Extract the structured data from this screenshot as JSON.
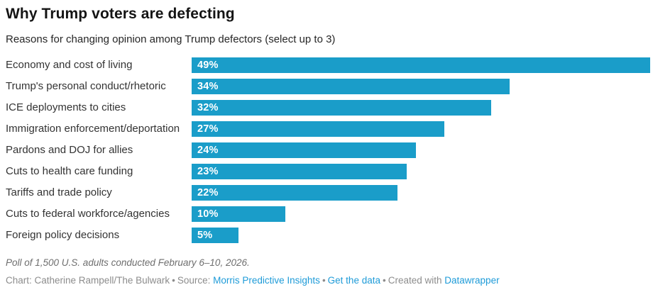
{
  "header": {
    "title": "Why Trump voters are defecting",
    "subtitle": "Reasons for changing opinion among Trump defectors (select up to 3)"
  },
  "chart_data": {
    "type": "bar",
    "orientation": "horizontal",
    "title": "Why Trump voters are defecting",
    "subtitle": "Reasons for changing opinion among Trump defectors (select up to 3)",
    "categories": [
      "Economy and cost of living",
      "Trump's personal conduct/rhetoric",
      "ICE deployments to cities",
      "Immigration enforcement/deportation",
      "Pardons and DOJ for allies",
      "Cuts to health care funding",
      "Tariffs and trade policy",
      "Cuts to federal workforce/agencies",
      "Foreign policy decisions"
    ],
    "values": [
      49,
      34,
      32,
      27,
      24,
      23,
      22,
      10,
      5
    ],
    "value_labels": [
      "49%",
      "34%",
      "32%",
      "27%",
      "24%",
      "23%",
      "22%",
      "10%",
      "5%"
    ],
    "value_suffix": "%",
    "xlim": [
      0,
      49
    ],
    "grid": false,
    "legend": "none",
    "bar_color": "#1a9dc9",
    "value_label_color": "#ffffff"
  },
  "footer": {
    "note": "Poll of 1,500 U.S. adults conducted February 6–10, 2026.",
    "byline": {
      "chart_credit": "Chart: Catherine Rampell/The Bulwark",
      "separator": "•",
      "source_label": "Source:",
      "source_name": "Morris Predictive Insights",
      "get_data": "Get the data",
      "created_with": "Created with",
      "tool": "Datawrapper"
    },
    "link_color": "#1e9bd8"
  }
}
